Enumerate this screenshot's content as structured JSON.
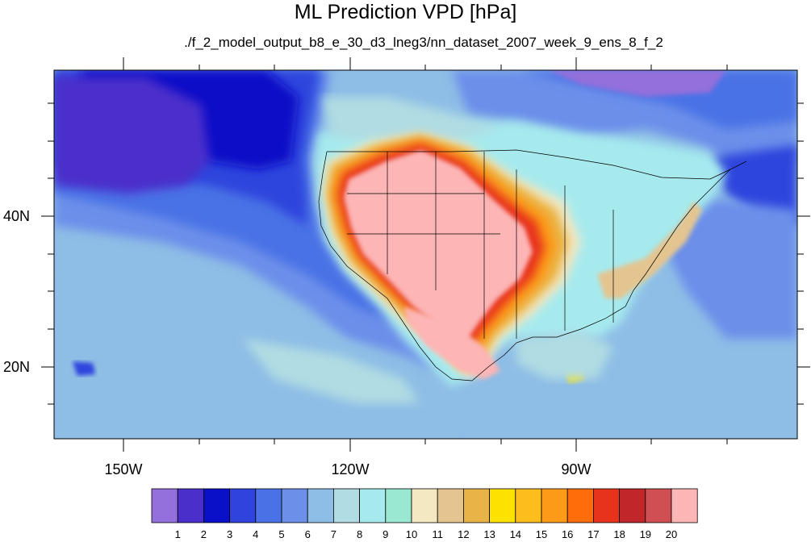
{
  "title": "ML Prediction VPD [hPa]",
  "subtitle": "./f_2_model_output_b8_e_30_d3_lneg3/nn_dataset_2007_week_9_ens_8_f_2",
  "lat_labels": [
    "40N",
    "20N"
  ],
  "lon_labels": [
    "150W",
    "120W",
    "90W"
  ],
  "colorbar": {
    "colors": [
      "#9370db",
      "#4b2fcb",
      "#0a10c7",
      "#2e44dd",
      "#4a72e6",
      "#6c8fea",
      "#8ebde6",
      "#b0dce3",
      "#a6eaee",
      "#9ae7d2",
      "#f4e8c3",
      "#e4c590",
      "#e9b347",
      "#fde100",
      "#fdbd1c",
      "#fd9b19",
      "#ff6c0a",
      "#e7331c",
      "#c0262a",
      "#d04f52",
      "#fdb5b5"
    ],
    "labels": [
      "1",
      "2",
      "3",
      "4",
      "5",
      "6",
      "7",
      "8",
      "9",
      "10",
      "11",
      "12",
      "13",
      "14",
      "15",
      "16",
      "17",
      "18",
      "19",
      "20"
    ]
  }
}
